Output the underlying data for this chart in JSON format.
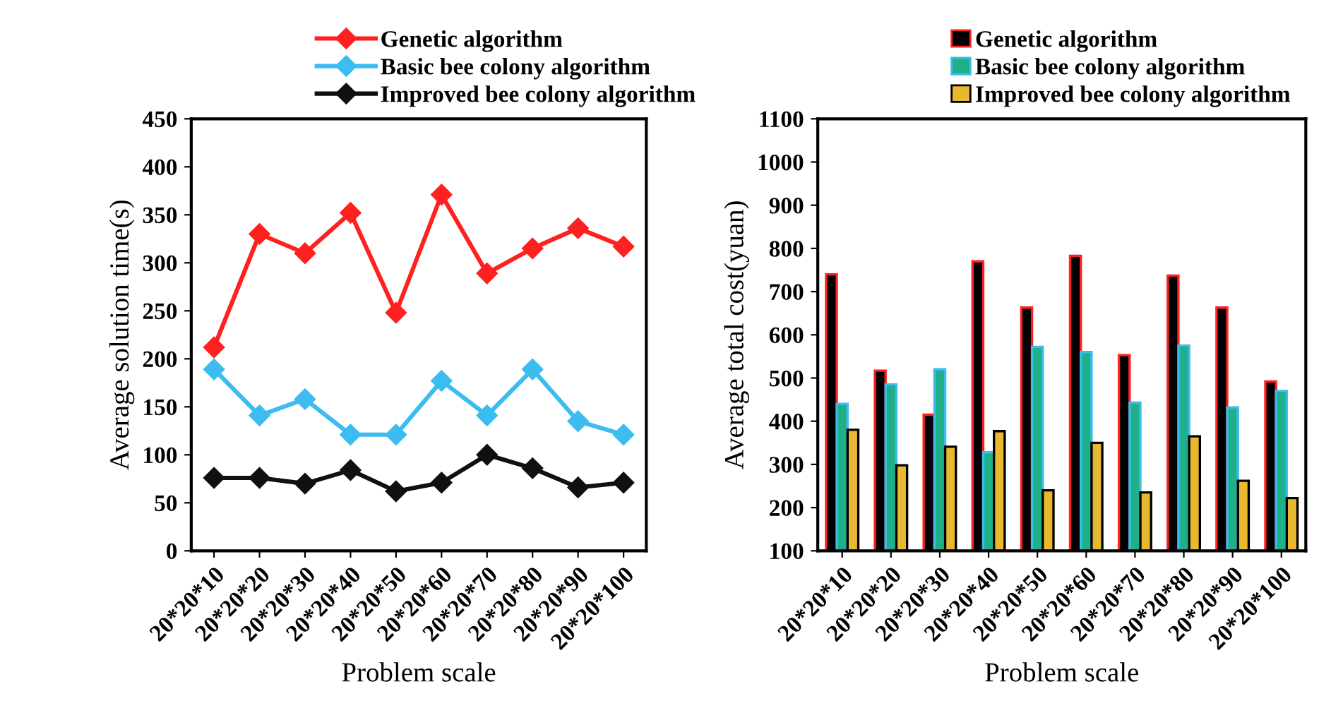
{
  "chart_data": [
    {
      "type": "line",
      "xlabel": "Problem scale",
      "ylabel": "Average solution time(s)",
      "categories": [
        "20*20*10",
        "20*20*20",
        "20*20*30",
        "20*20*40",
        "20*20*50",
        "20*20*60",
        "20*20*70",
        "20*20*80",
        "20*20*90",
        "20*20*100"
      ],
      "series": [
        {
          "name": "Genetic algorithm",
          "color": "#ff2020",
          "values": [
            212,
            330,
            310,
            352,
            248,
            371,
            289,
            315,
            336,
            317
          ]
        },
        {
          "name": "Basic bee colony algorithm",
          "color": "#3cbcf0",
          "values": [
            189,
            141,
            158,
            121,
            121,
            177,
            141,
            189,
            135,
            121
          ]
        },
        {
          "name": "Improved bee colony algorithm",
          "color": "#101010",
          "values": [
            76,
            76,
            70,
            84,
            62,
            71,
            100,
            86,
            66,
            71
          ]
        }
      ],
      "ylim": [
        0,
        450
      ],
      "yticks": [
        0,
        50,
        100,
        150,
        200,
        250,
        300,
        350,
        400,
        450
      ],
      "marker": "diamond",
      "legend": "top",
      "grid": false
    },
    {
      "type": "bar",
      "xlabel": "Problem scale",
      "ylabel": "Average total cost(yuan)",
      "categories": [
        "20*20*10",
        "20*20*20",
        "20*20*30",
        "20*20*40",
        "20*20*50",
        "20*20*60",
        "20*20*70",
        "20*20*80",
        "20*20*90",
        "20*20*100"
      ],
      "series": [
        {
          "name": "Genetic algorithm",
          "color": "#000000",
          "values": [
            740,
            517,
            415,
            770,
            663,
            783,
            553,
            737,
            663,
            492
          ]
        },
        {
          "name": "Basic bee colony algorithm",
          "color": "#1fb08a",
          "values": [
            440,
            485,
            520,
            328,
            572,
            560,
            443,
            575,
            432,
            470
          ]
        },
        {
          "name": "Improved bee colony algorithm",
          "color": "#e8b830",
          "values": [
            380,
            298,
            341,
            377,
            240,
            350,
            235,
            365,
            262,
            222
          ]
        }
      ],
      "ylim": [
        100,
        1100
      ],
      "yticks": [
        100,
        200,
        300,
        400,
        500,
        600,
        700,
        800,
        900,
        1000,
        1100
      ],
      "legend": "top",
      "grid": false
    }
  ]
}
